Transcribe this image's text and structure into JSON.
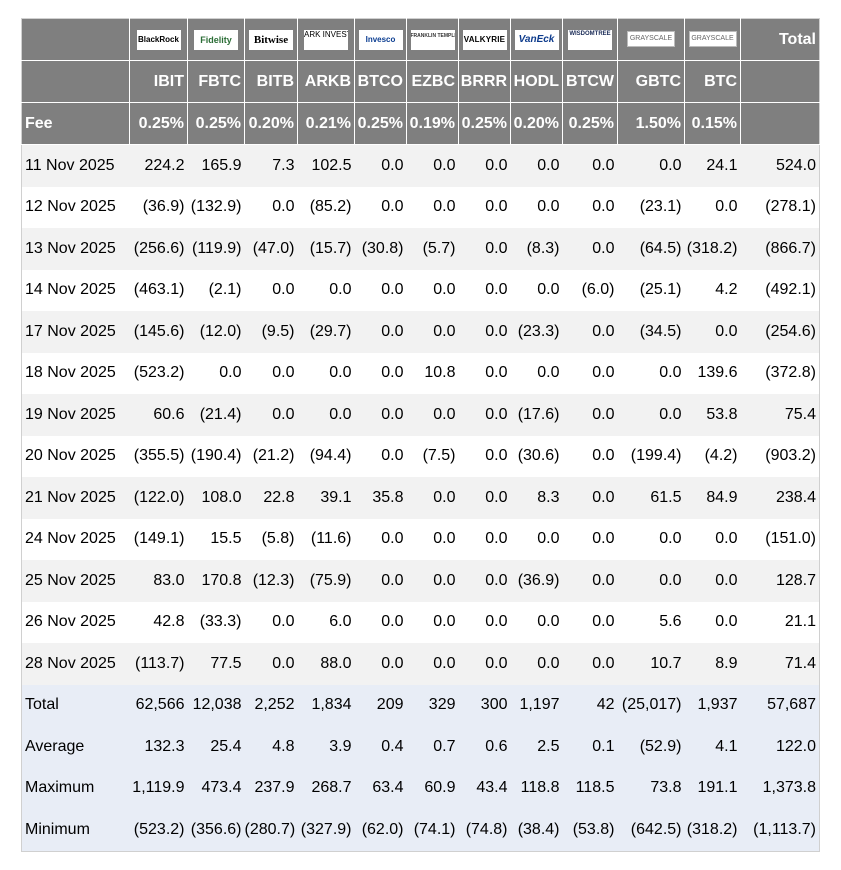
{
  "chart_data": {
    "type": "table",
    "total_header": "Total",
    "logos": [
      {
        "name": "blackrock",
        "text": "BlackRock"
      },
      {
        "name": "fidelity",
        "text": "Fidelity"
      },
      {
        "name": "bitwise",
        "text": "Bitwise"
      },
      {
        "name": "ark",
        "text": "ARK INVEST"
      },
      {
        "name": "invesco",
        "text": "Invesco"
      },
      {
        "name": "franklin",
        "text": "FRANKLIN TEMPLETON"
      },
      {
        "name": "valkyrie",
        "text": "VALKYRIE"
      },
      {
        "name": "vaneck",
        "text": "VanEck"
      },
      {
        "name": "wisdomtree",
        "text": "WISDOMTREE"
      },
      {
        "name": "grayscale",
        "text": "GRAYSCALE"
      },
      {
        "name": "grayscale",
        "text": "GRAYSCALE"
      }
    ],
    "tickers": [
      "IBIT",
      "FBTC",
      "BITB",
      "ARKB",
      "BTCO",
      "EZBC",
      "BRRR",
      "HODL",
      "BTCW",
      "GBTC",
      "BTC"
    ],
    "fee_label": "Fee",
    "fees": [
      "0.25%",
      "0.25%",
      "0.20%",
      "0.21%",
      "0.25%",
      "0.19%",
      "0.25%",
      "0.20%",
      "0.25%",
      "1.50%",
      "0.15%"
    ],
    "rows": [
      {
        "date": "11 Nov 2025",
        "values": [
          "224.2",
          "165.9",
          "7.3",
          "102.5",
          "0.0",
          "0.0",
          "0.0",
          "0.0",
          "0.0",
          "0.0",
          "24.1",
          "524.0"
        ]
      },
      {
        "date": "12 Nov 2025",
        "values": [
          "(36.9)",
          "(132.9)",
          "0.0",
          "(85.2)",
          "0.0",
          "0.0",
          "0.0",
          "0.0",
          "0.0",
          "(23.1)",
          "0.0",
          "(278.1)"
        ]
      },
      {
        "date": "13 Nov 2025",
        "values": [
          "(256.6)",
          "(119.9)",
          "(47.0)",
          "(15.7)",
          "(30.8)",
          "(5.7)",
          "0.0",
          "(8.3)",
          "0.0",
          "(64.5)",
          "(318.2)",
          "(866.7)"
        ]
      },
      {
        "date": "14 Nov 2025",
        "values": [
          "(463.1)",
          "(2.1)",
          "0.0",
          "0.0",
          "0.0",
          "0.0",
          "0.0",
          "0.0",
          "(6.0)",
          "(25.1)",
          "4.2",
          "(492.1)"
        ]
      },
      {
        "date": "17 Nov 2025",
        "values": [
          "(145.6)",
          "(12.0)",
          "(9.5)",
          "(29.7)",
          "0.0",
          "0.0",
          "0.0",
          "(23.3)",
          "0.0",
          "(34.5)",
          "0.0",
          "(254.6)"
        ]
      },
      {
        "date": "18 Nov 2025",
        "values": [
          "(523.2)",
          "0.0",
          "0.0",
          "0.0",
          "0.0",
          "10.8",
          "0.0",
          "0.0",
          "0.0",
          "0.0",
          "139.6",
          "(372.8)"
        ]
      },
      {
        "date": "19 Nov 2025",
        "values": [
          "60.6",
          "(21.4)",
          "0.0",
          "0.0",
          "0.0",
          "0.0",
          "0.0",
          "(17.6)",
          "0.0",
          "0.0",
          "53.8",
          "75.4"
        ]
      },
      {
        "date": "20 Nov 2025",
        "values": [
          "(355.5)",
          "(190.4)",
          "(21.2)",
          "(94.4)",
          "0.0",
          "(7.5)",
          "0.0",
          "(30.6)",
          "0.0",
          "(199.4)",
          "(4.2)",
          "(903.2)"
        ]
      },
      {
        "date": "21 Nov 2025",
        "values": [
          "(122.0)",
          "108.0",
          "22.8",
          "39.1",
          "35.8",
          "0.0",
          "0.0",
          "8.3",
          "0.0",
          "61.5",
          "84.9",
          "238.4"
        ]
      },
      {
        "date": "24 Nov 2025",
        "values": [
          "(149.1)",
          "15.5",
          "(5.8)",
          "(11.6)",
          "0.0",
          "0.0",
          "0.0",
          "0.0",
          "0.0",
          "0.0",
          "0.0",
          "(151.0)"
        ]
      },
      {
        "date": "25 Nov 2025",
        "values": [
          "83.0",
          "170.8",
          "(12.3)",
          "(75.9)",
          "0.0",
          "0.0",
          "0.0",
          "(36.9)",
          "0.0",
          "0.0",
          "0.0",
          "128.7"
        ]
      },
      {
        "date": "26 Nov 2025",
        "values": [
          "42.8",
          "(33.3)",
          "0.0",
          "6.0",
          "0.0",
          "0.0",
          "0.0",
          "0.0",
          "0.0",
          "5.6",
          "0.0",
          "21.1"
        ]
      },
      {
        "date": "28 Nov 2025",
        "values": [
          "(113.7)",
          "77.5",
          "0.0",
          "88.0",
          "0.0",
          "0.0",
          "0.0",
          "0.0",
          "0.0",
          "10.7",
          "8.9",
          "71.4"
        ]
      }
    ],
    "summary": [
      {
        "label": "Total",
        "values": [
          "62,566",
          "12,038",
          "2,252",
          "1,834",
          "209",
          "329",
          "300",
          "1,197",
          "42",
          "(25,017)",
          "1,937",
          "57,687"
        ]
      },
      {
        "label": "Average",
        "values": [
          "132.3",
          "25.4",
          "4.8",
          "3.9",
          "0.4",
          "0.7",
          "0.6",
          "2.5",
          "0.1",
          "(52.9)",
          "4.1",
          "122.0"
        ]
      },
      {
        "label": "Maximum",
        "values": [
          "1,119.9",
          "473.4",
          "237.9",
          "268.7",
          "63.4",
          "60.9",
          "43.4",
          "118.8",
          "118.5",
          "73.8",
          "191.1",
          "1,373.8"
        ]
      },
      {
        "label": "Minimum",
        "values": [
          "(523.2)",
          "(356.6)",
          "(280.7)",
          "(327.9)",
          "(62.0)",
          "(74.1)",
          "(74.8)",
          "(38.4)",
          "(53.8)",
          "(642.5)",
          "(318.2)",
          "(1,113.7)"
        ]
      }
    ]
  },
  "colors": {
    "header_bg": "#7f7f7f",
    "header_text": "#ffffff",
    "row_alt_bg": "#f2f2f2",
    "summary_bg": "#e8edf6",
    "negative": "#e00000"
  }
}
